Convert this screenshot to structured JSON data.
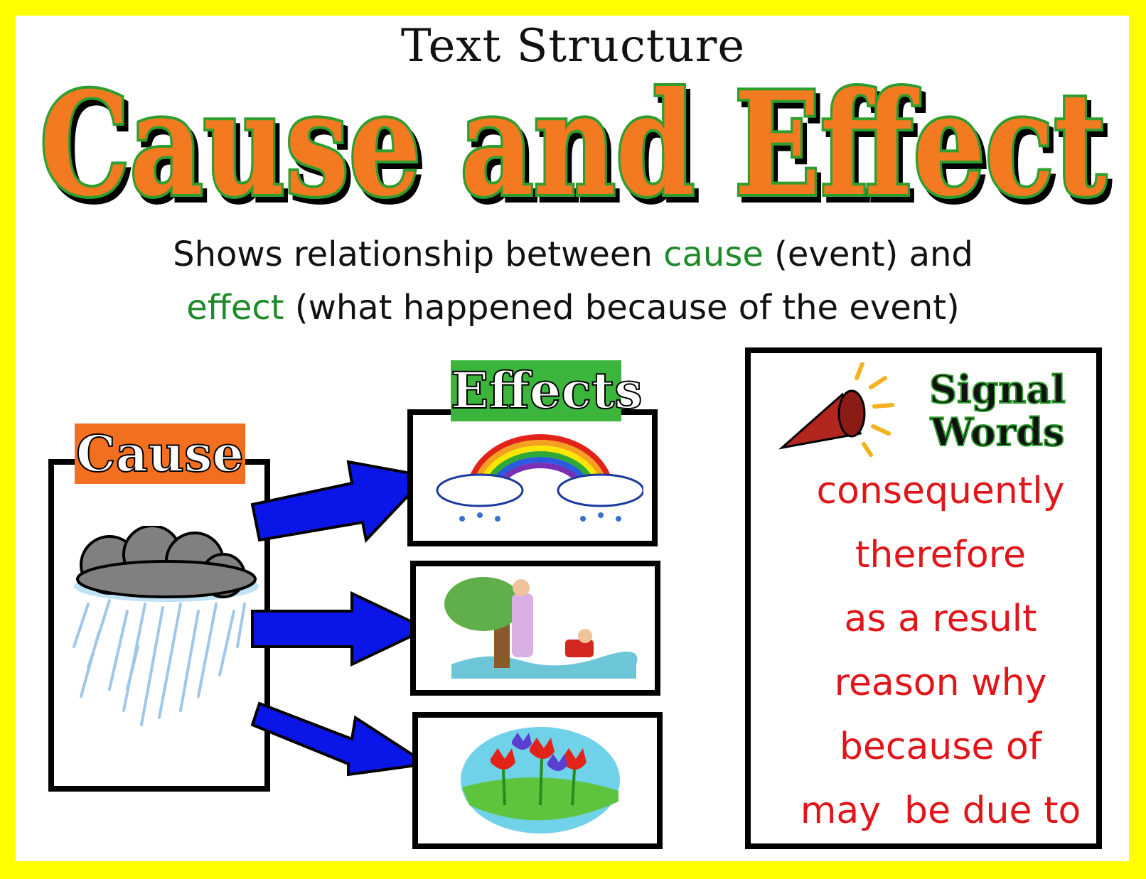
{
  "header": {
    "subtitle": "Text Structure",
    "title": "Cause and Effect"
  },
  "description": {
    "line1_a": "Shows relationship between ",
    "line1_cause": "cause",
    "line1_b": " (event) and",
    "line2_effect": "effect",
    "line2_b": " (what happened because of the event)"
  },
  "cause_panel": {
    "label": "Cause",
    "icon": "rain-cloud-icon"
  },
  "effects_panel": {
    "label": "Effects",
    "items": [
      {
        "icon": "rainbow-icon"
      },
      {
        "icon": "flood-icon"
      },
      {
        "icon": "flowers-icon"
      }
    ]
  },
  "signal_panel": {
    "heading_line1": "Signal",
    "heading_line2": "Words",
    "icon": "megaphone-icon",
    "words": [
      "consequently",
      "therefore",
      "as a result",
      "reason why",
      "because of",
      "may  be due to"
    ]
  },
  "colors": {
    "border": "#ffff00",
    "title_fill": "#f47a20",
    "title_outline": "#2e9e2e",
    "highlight_green": "#1f8a2a",
    "signal_red": "#e0161b",
    "arrow_blue": "#0a16e8",
    "cause_tag": "#f36f20",
    "effects_tag": "#3cb53c"
  }
}
